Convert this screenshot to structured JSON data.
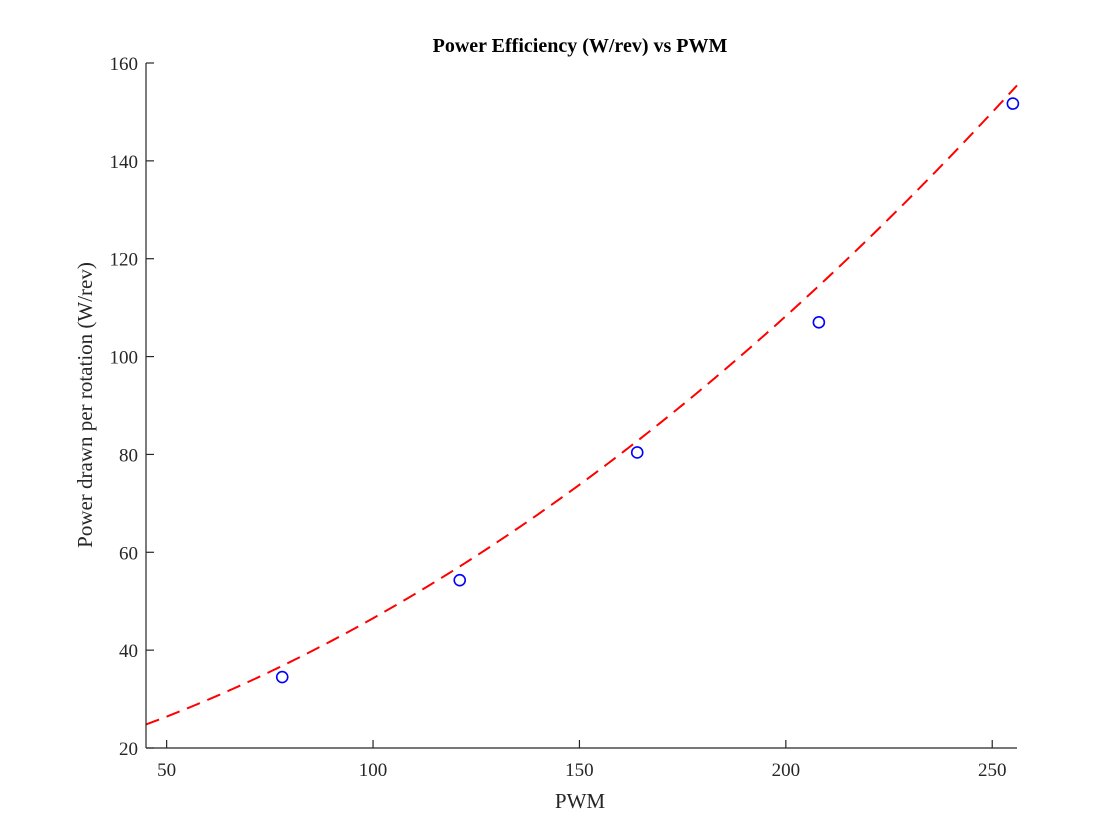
{
  "chart_data": {
    "type": "scatter",
    "title": "Power Efficiency (W/rev) vs PWM",
    "xlabel": "PWM",
    "ylabel": "Power drawn per rotation (W/rev)",
    "xlim": [
      45,
      256
    ],
    "ylim": [
      20,
      160
    ],
    "xticks": [
      50,
      100,
      150,
      200,
      250
    ],
    "yticks": [
      20,
      40,
      60,
      80,
      100,
      120,
      140,
      160
    ],
    "grid": false,
    "legend": "none",
    "series": [
      {
        "kind": "markers",
        "marker": "circle-open",
        "color": "#0000ff",
        "x": [
          78,
          121,
          164,
          208,
          255
        ],
        "y": [
          34.5,
          54.3,
          80.4,
          107.0,
          151.7
        ]
      },
      {
        "kind": "fit-curve",
        "style": "dashed",
        "color": "#ff0000",
        "model": "quadratic",
        "coefficients": [
          0.001437,
          0.1865,
          13.5
        ]
      }
    ]
  }
}
